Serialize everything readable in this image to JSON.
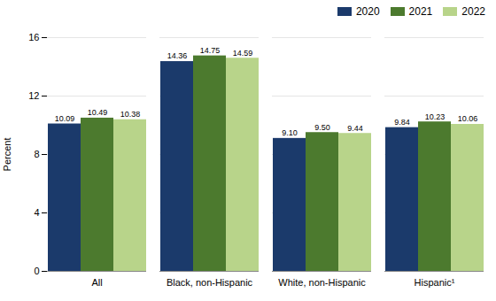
{
  "chart_data": {
    "type": "bar",
    "categories": [
      "All",
      "Black, non-Hispanic",
      "White, non-Hispanic",
      "Hispanic¹"
    ],
    "series": [
      {
        "name": "2020",
        "color": "#1b3a6b",
        "values": [
          10.09,
          14.36,
          9.1,
          9.84
        ],
        "value_labels": [
          "10.09",
          "14.36",
          "9.10",
          "9.84"
        ]
      },
      {
        "name": "2021",
        "color": "#4c7a2e",
        "values": [
          10.49,
          14.75,
          9.5,
          10.23
        ],
        "value_labels": [
          "10.49",
          "14.75",
          "9.50",
          "10.23"
        ]
      },
      {
        "name": "2022",
        "color": "#b8d48a",
        "values": [
          10.38,
          14.59,
          9.44,
          10.06
        ],
        "value_labels": [
          "10.38",
          "14.59",
          "9.44",
          "10.06"
        ]
      }
    ],
    "ylabel": "Percent",
    "ylim": [
      0,
      16
    ],
    "yticks": [
      0,
      4,
      8,
      12,
      16
    ],
    "grid": true,
    "data_labels": true,
    "legend": "upper right"
  }
}
